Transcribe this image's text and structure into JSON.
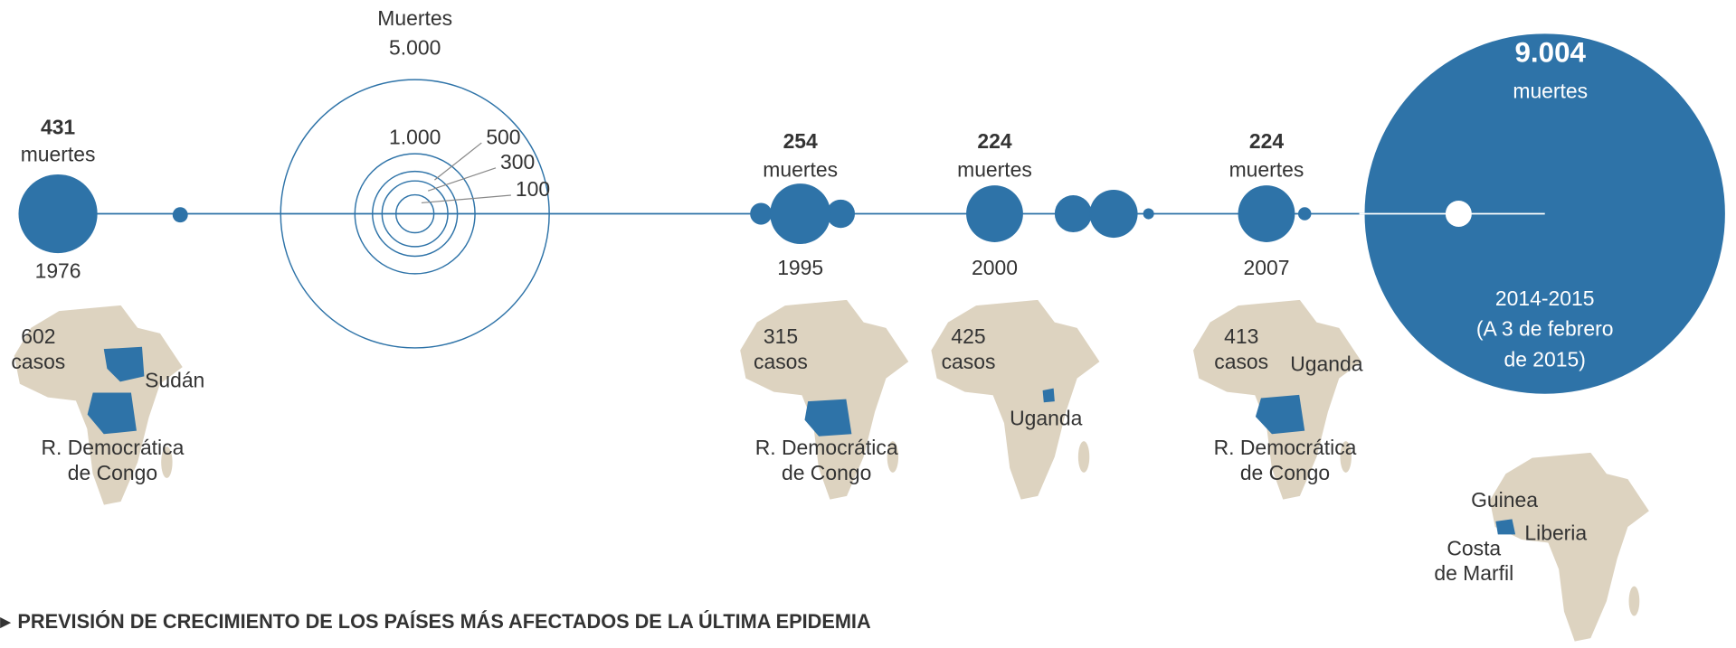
{
  "chart_data": {
    "type": "bubble-timeline",
    "size_legend": {
      "title": "Muertes",
      "ticks": [
        {
          "value": 5000,
          "label": "5.000"
        },
        {
          "value": 1000,
          "label": "1.000"
        },
        500,
        300,
        100
      ]
    },
    "events": [
      {
        "year": "1976",
        "deaths": 431,
        "deaths_unit": "muertes",
        "cases": 602,
        "cases_unit": "casos",
        "countries": [
          [
            "Sudán"
          ],
          [
            "R. Democrática",
            "de Congo"
          ]
        ]
      },
      {
        "year": "1995",
        "deaths": 254,
        "deaths_unit": "muertes",
        "cases": 315,
        "cases_unit": "casos",
        "countries": [
          [
            "R. Democrática",
            "de Congo"
          ]
        ]
      },
      {
        "year": "2000",
        "deaths": 224,
        "deaths_unit": "muertes",
        "cases": 425,
        "cases_unit": "casos",
        "countries": [
          [
            "Uganda"
          ]
        ]
      },
      {
        "year": "2007",
        "deaths": 224,
        "deaths_unit": "muertes",
        "cases": 413,
        "cases_unit": "casos",
        "countries": [
          [
            "Uganda"
          ],
          [
            "R. Democrática",
            "de Congo"
          ]
        ]
      },
      {
        "year": "2014-2015",
        "note": [
          "(A 3 de febrero",
          "de 2015)"
        ],
        "deaths": {
          "value": 9004,
          "label": "9.004"
        },
        "deaths_unit": "muertes",
        "countries": [
          [
            "Guinea"
          ],
          [
            "Liberia"
          ],
          [
            "Costa",
            "de Marfil"
          ]
        ]
      }
    ],
    "footer": "PREVISIÓN DE CRECIMIENTO DE LOS PAÍSES MÁS AFECTADOS DE LA ÚLTIMA EPIDEMIA",
    "color": "#2e73a8"
  }
}
